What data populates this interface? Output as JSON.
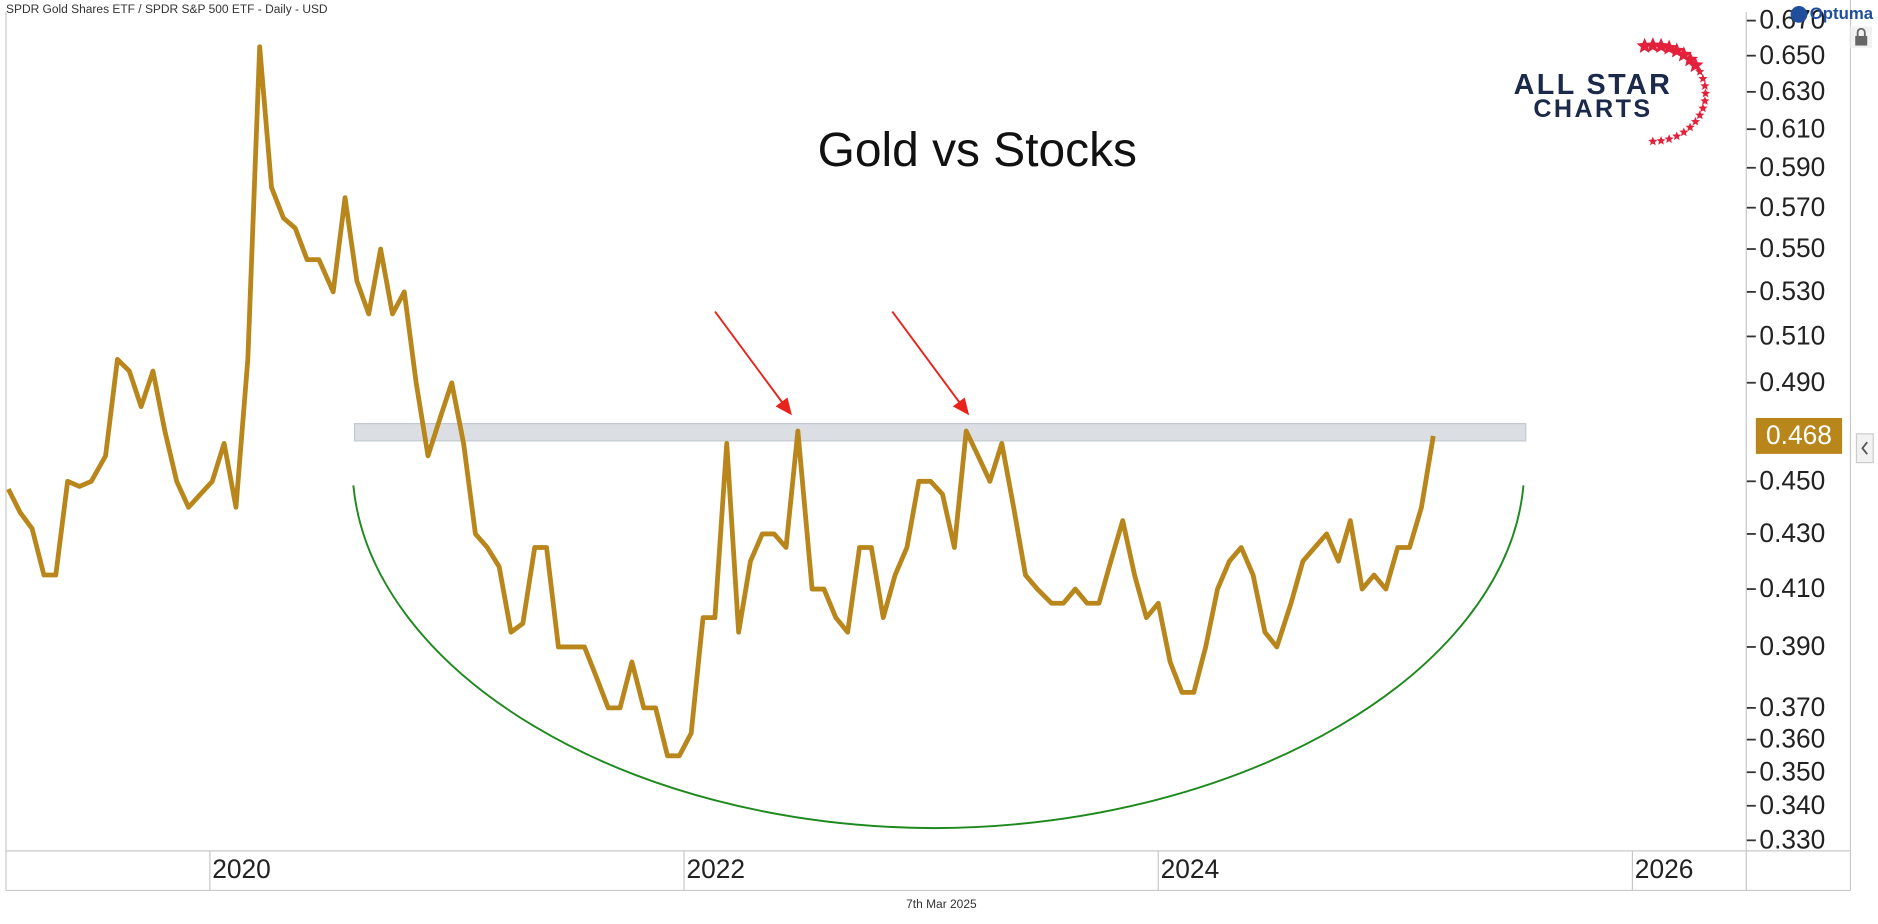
{
  "chart_data": {
    "type": "line",
    "title": "Gold vs Stocks",
    "subtitle": "SPDR Gold Shares ETF / SPDR S&P 500 ETF - Daily - USD",
    "date_label": "7th Mar 2025",
    "source": "Optuma",
    "logo": [
      "ALL STAR",
      "CHARTS"
    ],
    "log_scale": true,
    "xlim": [
      2019.13,
      2026.47
    ],
    "xticks": [
      2020,
      2022,
      2024,
      2026
    ],
    "ylim": [
      0.327,
      0.675
    ],
    "yticks": [
      {
        "value": 0.33,
        "label": "0.330"
      },
      {
        "value": 0.34,
        "label": "0.340"
      },
      {
        "value": 0.35,
        "label": "0.350"
      },
      {
        "value": 0.36,
        "label": "0.360"
      },
      {
        "value": 0.37,
        "label": "0.370"
      },
      {
        "value": 0.39,
        "label": "0.390"
      },
      {
        "value": 0.41,
        "label": "0.410"
      },
      {
        "value": 0.43,
        "label": "0.430"
      },
      {
        "value": 0.45,
        "label": "0.450"
      },
      {
        "value": 0.49,
        "label": "0.490"
      },
      {
        "value": 0.51,
        "label": "0.510"
      },
      {
        "value": 0.53,
        "label": "0.530"
      },
      {
        "value": 0.55,
        "label": "0.550"
      },
      {
        "value": 0.57,
        "label": "0.570"
      },
      {
        "value": 0.59,
        "label": "0.590"
      },
      {
        "value": 0.61,
        "label": "0.610"
      },
      {
        "value": 0.63,
        "label": "0.630"
      },
      {
        "value": 0.65,
        "label": "0.650"
      },
      {
        "value": 0.67,
        "label": "0.670"
      }
    ],
    "highlight_band": {
      "xlim": [
        2020.6,
        2025.54
      ],
      "ylim": [
        0.466,
        0.473
      ],
      "color": "#d5dae0"
    },
    "x": [
      2019.14,
      2019.19,
      2019.24,
      2019.29,
      2019.34,
      2019.39,
      2019.44,
      2019.49,
      2019.55,
      2019.6,
      2019.65,
      2019.7,
      2019.75,
      2019.8,
      2019.85,
      2019.9,
      2019.95,
      2020.0,
      2020.05,
      2020.1,
      2020.15,
      2020.2,
      2020.25,
      2020.3,
      2020.35,
      2020.4,
      2020.45,
      2020.51,
      2020.56,
      2020.61,
      2020.66,
      2020.71,
      2020.76,
      2020.81,
      2020.86,
      2020.91,
      2020.96,
      2021.01,
      2021.06,
      2021.11,
      2021.16,
      2021.21,
      2021.26,
      2021.31,
      2021.36,
      2021.41,
      2021.46,
      2021.52,
      2021.57,
      2021.62,
      2021.67,
      2021.72,
      2021.77,
      2021.82,
      2021.87,
      2021.92,
      2021.97,
      2022.02,
      2022.07,
      2022.12,
      2022.17,
      2022.22,
      2022.27,
      2022.32,
      2022.37,
      2022.42,
      2022.47,
      2022.53,
      2022.58,
      2022.63,
      2022.68,
      2022.73,
      2022.78,
      2022.83,
      2022.88,
      2022.93,
      2022.98,
      2023.03,
      2023.08,
      2023.13,
      2023.18,
      2023.23,
      2023.28,
      2023.33,
      2023.38,
      2023.43,
      2023.48,
      2023.54,
      2023.59,
      2023.64,
      2023.69,
      2023.74,
      2023.79,
      2023.84,
      2023.89,
      2023.94,
      2023.99,
      2024.04,
      2024.09,
      2024.14,
      2024.19,
      2024.24,
      2024.29,
      2024.34,
      2024.39,
      2024.44,
      2024.49,
      2024.55,
      2024.6,
      2024.65,
      2024.7,
      2024.75,
      2024.8,
      2024.85,
      2024.9,
      2024.95,
      2025.0,
      2025.05,
      2025.1,
      2025.15
    ],
    "series": [
      {
        "name": "SPDR Gold Shares ETF / SPDR S&P 500 ETF",
        "color": "#b8861b",
        "values": [
          0.447,
          0.438,
          0.432,
          0.415,
          0.415,
          0.45,
          0.448,
          0.45,
          0.46,
          0.5,
          0.495,
          0.48,
          0.495,
          0.47,
          0.45,
          0.44,
          0.445,
          0.45,
          0.465,
          0.44,
          0.5,
          0.655,
          0.58,
          0.565,
          0.56,
          0.545,
          0.545,
          0.53,
          0.575,
          0.535,
          0.52,
          0.55,
          0.52,
          0.53,
          0.49,
          0.46,
          0.475,
          0.49,
          0.465,
          0.43,
          0.425,
          0.418,
          0.395,
          0.398,
          0.425,
          0.425,
          0.39,
          0.39,
          0.39,
          0.38,
          0.37,
          0.37,
          0.385,
          0.37,
          0.37,
          0.355,
          0.355,
          0.362,
          0.4,
          0.4,
          0.465,
          0.395,
          0.42,
          0.43,
          0.43,
          0.425,
          0.47,
          0.41,
          0.41,
          0.4,
          0.395,
          0.425,
          0.425,
          0.4,
          0.415,
          0.425,
          0.45,
          0.45,
          0.445,
          0.425,
          0.47,
          0.46,
          0.45,
          0.465,
          0.44,
          0.415,
          0.41,
          0.405,
          0.405,
          0.41,
          0.405,
          0.405,
          0.42,
          0.435,
          0.415,
          0.4,
          0.405,
          0.385,
          0.375,
          0.375,
          0.39,
          0.41,
          0.42,
          0.425,
          0.415,
          0.395,
          0.39,
          0.405,
          0.42,
          0.425,
          0.43,
          0.42,
          0.435,
          0.41,
          0.415,
          0.41,
          0.425,
          0.425,
          0.44,
          0.468
        ]
      }
    ]
  }
}
